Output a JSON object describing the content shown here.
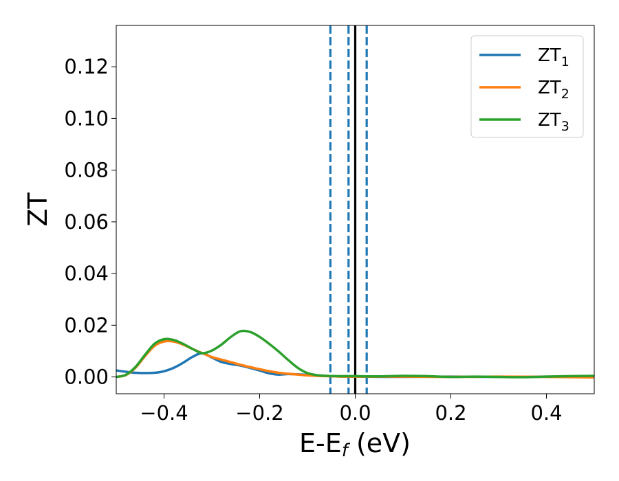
{
  "chart_data": {
    "type": "line",
    "title": "",
    "xlabel": {
      "main": "E-E",
      "sub": "f",
      "suffix": " (eV)"
    },
    "ylabel": "ZT",
    "xlim": [
      -0.5,
      0.5
    ],
    "ylim": [
      -0.0065,
      0.136
    ],
    "x_ticks": [
      -0.4,
      -0.2,
      0.0,
      0.2,
      0.4
    ],
    "x_tick_labels": [
      "−0.4",
      "−0.2",
      "0.0",
      "0.2",
      "0.4"
    ],
    "y_ticks": [
      0.0,
      0.02,
      0.04,
      0.06,
      0.08,
      0.1,
      0.12
    ],
    "y_tick_labels": [
      "0.00",
      "0.02",
      "0.04",
      "0.06",
      "0.08",
      "0.10",
      "0.12"
    ],
    "grid": false,
    "legend_position": "top-right",
    "vertical_lines": [
      {
        "x": -0.052,
        "style": "dashed",
        "color": "#1f77b4"
      },
      {
        "x": -0.014,
        "style": "dashed",
        "color": "#1f77b4"
      },
      {
        "x": 0.0,
        "style": "solid",
        "color": "#000000"
      },
      {
        "x": 0.024,
        "style": "dashed",
        "color": "#1f77b4"
      }
    ],
    "series": [
      {
        "name": "ZT",
        "sub": "1",
        "color": "#1f77b4",
        "points": [
          [
            -0.5,
            0.0025
          ],
          [
            -0.48,
            0.002
          ],
          [
            -0.46,
            0.0016
          ],
          [
            -0.44,
            0.0015
          ],
          [
            -0.42,
            0.0016
          ],
          [
            -0.4,
            0.0022
          ],
          [
            -0.38,
            0.0035
          ],
          [
            -0.36,
            0.0055
          ],
          [
            -0.34,
            0.0078
          ],
          [
            -0.32,
            0.0092
          ],
          [
            -0.3,
            0.0075
          ],
          [
            -0.28,
            0.0058
          ],
          [
            -0.26,
            0.005
          ],
          [
            -0.24,
            0.0044
          ],
          [
            -0.22,
            0.0035
          ],
          [
            -0.2,
            0.0025
          ],
          [
            -0.18,
            0.0014
          ],
          [
            -0.16,
            0.0009
          ],
          [
            -0.14,
            0.0011
          ],
          [
            -0.12,
            0.001
          ],
          [
            -0.1,
            0.0008
          ],
          [
            -0.08,
            0.0006
          ],
          [
            -0.06,
            0.0004
          ],
          [
            -0.04,
            0.0002
          ],
          [
            -0.02,
            0.0001
          ],
          [
            0.0,
            0.0001
          ],
          [
            0.1,
            0.0
          ],
          [
            0.2,
            0.0001
          ],
          [
            0.3,
            0.0
          ],
          [
            0.4,
            0.0001
          ],
          [
            0.5,
            0.0002
          ]
        ]
      },
      {
        "name": "ZT",
        "sub": "2",
        "color": "#ff7f0e",
        "points": [
          [
            -0.5,
            0.0
          ],
          [
            -0.48,
            0.0007
          ],
          [
            -0.46,
            0.0035
          ],
          [
            -0.44,
            0.008
          ],
          [
            -0.42,
            0.012
          ],
          [
            -0.4,
            0.0137
          ],
          [
            -0.38,
            0.0137
          ],
          [
            -0.36,
            0.0125
          ],
          [
            -0.34,
            0.0108
          ],
          [
            -0.32,
            0.0092
          ],
          [
            -0.3,
            0.0077
          ],
          [
            -0.28,
            0.0067
          ],
          [
            -0.26,
            0.0057
          ],
          [
            -0.24,
            0.0047
          ],
          [
            -0.22,
            0.0038
          ],
          [
            -0.2,
            0.003
          ],
          [
            -0.18,
            0.0022
          ],
          [
            -0.16,
            0.0016
          ],
          [
            -0.14,
            0.0012
          ],
          [
            -0.12,
            0.0009
          ],
          [
            -0.1,
            0.0006
          ],
          [
            -0.08,
            0.0004
          ],
          [
            -0.06,
            0.0003
          ],
          [
            -0.04,
            0.0002
          ],
          [
            -0.02,
            0.0001
          ],
          [
            0.0,
            0.0001
          ],
          [
            0.1,
            0.0001
          ],
          [
            0.2,
            0.0
          ],
          [
            0.3,
            0.0001
          ],
          [
            0.4,
            0.0
          ],
          [
            0.5,
            -0.0002
          ]
        ]
      },
      {
        "name": "ZT",
        "sub": "3",
        "color": "#2ca02c",
        "points": [
          [
            -0.5,
            0.0
          ],
          [
            -0.48,
            0.0008
          ],
          [
            -0.46,
            0.0038
          ],
          [
            -0.44,
            0.0085
          ],
          [
            -0.42,
            0.0128
          ],
          [
            -0.4,
            0.0146
          ],
          [
            -0.38,
            0.0143
          ],
          [
            -0.36,
            0.0128
          ],
          [
            -0.34,
            0.0108
          ],
          [
            -0.32,
            0.0092
          ],
          [
            -0.3,
            0.0102
          ],
          [
            -0.28,
            0.0125
          ],
          [
            -0.26,
            0.0155
          ],
          [
            -0.24,
            0.0177
          ],
          [
            -0.22,
            0.0174
          ],
          [
            -0.2,
            0.0155
          ],
          [
            -0.18,
            0.0128
          ],
          [
            -0.16,
            0.0098
          ],
          [
            -0.14,
            0.0065
          ],
          [
            -0.12,
            0.0035
          ],
          [
            -0.1,
            0.0015
          ],
          [
            -0.08,
            0.0007
          ],
          [
            -0.06,
            0.0004
          ],
          [
            -0.04,
            0.0003
          ],
          [
            -0.02,
            0.0003
          ],
          [
            0.0,
            0.0003
          ],
          [
            0.05,
            0.0002
          ],
          [
            0.1,
            0.0004
          ],
          [
            0.15,
            0.0003
          ],
          [
            0.2,
            0.0
          ],
          [
            0.25,
            0.0001
          ],
          [
            0.3,
            0.0
          ],
          [
            0.35,
            -0.0001
          ],
          [
            0.4,
            0.0001
          ],
          [
            0.45,
            0.0003
          ],
          [
            0.5,
            0.0004
          ]
        ]
      }
    ]
  }
}
